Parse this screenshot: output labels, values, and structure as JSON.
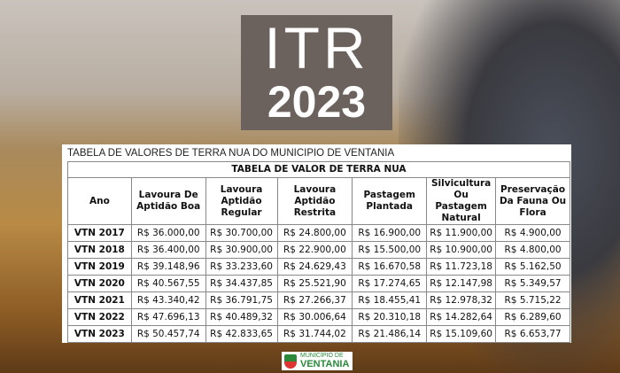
{
  "banner": {
    "line1": "ITR",
    "line2": "2023"
  },
  "caption": "TABELA DE VALORES DE TERRA NUA DO MUNICIPIO DE VENTANIA",
  "table": {
    "title": "TABELA DE VALOR DE TERRA NUA",
    "headers": [
      "Ano",
      "Lavoura De Aptidão Boa",
      "Lavoura Aptidão Regular",
      "Lavoura Aptidão Restrita",
      "Pastagem Plantada",
      "Silvicultura Ou Pastagem Natural",
      "Preservação Da Fauna Ou Flora"
    ],
    "rows": [
      [
        "VTN 2017",
        "R$ 36.000,00",
        "R$ 30.700,00",
        "R$ 24.800,00",
        "R$ 16.900,00",
        "R$ 11.900,00",
        "R$ 4.900,00"
      ],
      [
        "VTN 2018",
        "R$ 36.400,00",
        "R$ 30.900,00",
        "R$ 22.900,00",
        "R$ 15.500,00",
        "R$ 10.900,00",
        "R$ 4.800,00"
      ],
      [
        "VTN 2019",
        "R$ 39.148,96",
        "R$ 33.233,60",
        "R$ 24.629,43",
        "R$ 16.670,58",
        "R$ 11.723,18",
        "R$ 5.162,50"
      ],
      [
        "VTN 2020",
        "R$ 40.567,55",
        "R$ 34.437,85",
        "R$ 25.521,90",
        "R$ 17.274,65",
        "R$ 12.147,98",
        "R$ 5.349,57"
      ],
      [
        "VTN 2021",
        "R$ 43.340,42",
        "R$ 36.791,75",
        "R$ 27.266,37",
        "R$ 18.455,41",
        "R$ 12.978,32",
        "R$ 5.715,22"
      ],
      [
        "VTN 2022",
        "R$ 47.696,13",
        "R$ 40.489,32",
        "R$ 30.006,64",
        "R$ 20.310,18",
        "R$ 14.282,64",
        "R$ 6.289,60"
      ],
      [
        "VTN 2023",
        "R$ 50.457,74",
        "R$ 42.833,65",
        "R$ 31.744,02",
        "R$ 21.486,14",
        "R$ 15.109,60",
        "R$ 6.653,77"
      ]
    ]
  },
  "logo": {
    "line1": "MUNICÍPIO DE",
    "line2": "VENTANIA"
  }
}
